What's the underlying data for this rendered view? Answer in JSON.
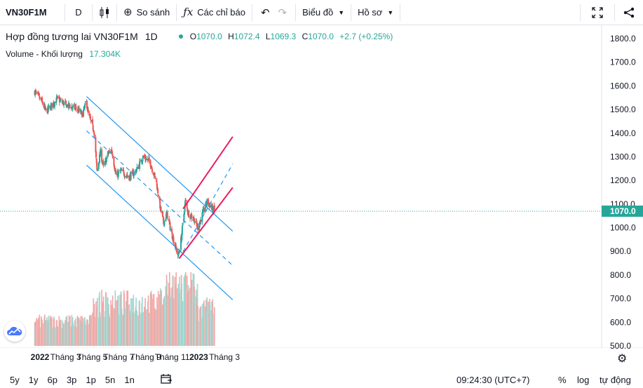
{
  "toolbar": {
    "symbol": "VN30F1M",
    "interval": "D",
    "compare_label": "So sánh",
    "indicators_label": "Các chỉ báo",
    "chart_label": "Biểu đồ",
    "profile_label": "Hồ sơ",
    "icons": [
      "candles-icon",
      "plus-circle-icon",
      "fx-icon",
      "undo-icon",
      "redo-icon",
      "fullscreen-icon",
      "share-icon"
    ]
  },
  "legend": {
    "title": "Hợp đồng tương lai VN30F1M",
    "interval": "1D",
    "o_label": "O",
    "o": "1070.0",
    "h_label": "H",
    "h": "1072.4",
    "l_label": "L",
    "l": "1069.3",
    "c_label": "C",
    "c": "1070.0",
    "change": "+2.7 (+0.25%)",
    "volume_label": "Volume - Khối lượng",
    "volume_value": "17.304K"
  },
  "bottom": {
    "ranges": [
      "5y",
      "1y",
      "6p",
      "3p",
      "1p",
      "5n",
      "1n"
    ],
    "time": "09:24:30 (UTC+7)",
    "percent": "%",
    "log": "log",
    "auto": "tự động"
  },
  "colors": {
    "up": "#26a69a",
    "down": "#ef5350",
    "channel": "#2196f3",
    "pitch": "#e91e63",
    "axis_text": "#131722",
    "grid": "#ffffff",
    "last_price_bg": "#26a69a"
  },
  "chart_data": {
    "type": "candlestick",
    "title": "Hợp đồng tương lai VN30F1M",
    "x_ticks": [
      "2022",
      "Tháng 3",
      "Tháng 5",
      "Tháng 7",
      "Tháng 9",
      "Tháng 11",
      "2023",
      "Tháng 3"
    ],
    "y_ticks": [
      "500.0",
      "600.0",
      "700.0",
      "800.0",
      "900.0",
      "1000.0",
      "1100.0",
      "1200.0",
      "1300.0",
      "1400.0",
      "1500.0",
      "1600.0",
      "1700.0",
      "1800.0"
    ],
    "y_range": [
      490,
      1830
    ],
    "last_price": 1070.0,
    "last_price_label": "1070.0",
    "close_path": [
      {
        "d": "2021-12-20",
        "c": 1575
      },
      {
        "d": "2022-01-05",
        "c": 1535
      },
      {
        "d": "2022-01-15",
        "c": 1490
      },
      {
        "d": "2022-02-10",
        "c": 1545
      },
      {
        "d": "2022-03-01",
        "c": 1520
      },
      {
        "d": "2022-03-25",
        "c": 1505
      },
      {
        "d": "2022-04-08",
        "c": 1480
      },
      {
        "d": "2022-04-18",
        "c": 1530
      },
      {
        "d": "2022-04-22",
        "c": 1480
      },
      {
        "d": "2022-05-05",
        "c": 1410
      },
      {
        "d": "2022-05-12",
        "c": 1240
      },
      {
        "d": "2022-05-20",
        "c": 1320
      },
      {
        "d": "2022-05-28",
        "c": 1250
      },
      {
        "d": "2022-06-05",
        "c": 1310
      },
      {
        "d": "2022-06-15",
        "c": 1330
      },
      {
        "d": "2022-06-25",
        "c": 1215
      },
      {
        "d": "2022-07-05",
        "c": 1240
      },
      {
        "d": "2022-07-25",
        "c": 1215
      },
      {
        "d": "2022-08-10",
        "c": 1240
      },
      {
        "d": "2022-08-26",
        "c": 1300
      },
      {
        "d": "2022-09-10",
        "c": 1280
      },
      {
        "d": "2022-09-25",
        "c": 1200
      },
      {
        "d": "2022-10-05",
        "c": 1080
      },
      {
        "d": "2022-10-12",
        "c": 1020
      },
      {
        "d": "2022-10-20",
        "c": 1060
      },
      {
        "d": "2022-10-30",
        "c": 980
      },
      {
        "d": "2022-11-08",
        "c": 920
      },
      {
        "d": "2022-11-15",
        "c": 880
      },
      {
        "d": "2022-11-22",
        "c": 960
      },
      {
        "d": "2022-12-01",
        "c": 1110
      },
      {
        "d": "2022-12-08",
        "c": 1060
      },
      {
        "d": "2022-12-20",
        "c": 1040
      },
      {
        "d": "2022-12-30",
        "c": 1000
      },
      {
        "d": "2023-01-10",
        "c": 1060
      },
      {
        "d": "2023-01-20",
        "c": 1110
      },
      {
        "d": "2023-02-06",
        "c": 1070
      }
    ],
    "volume_series": "Volume - Khối lượng",
    "volume_axis_note": "volume histogram in lower pane (no separate scale)",
    "drawings": [
      {
        "type": "parallel_channel",
        "color": "channel",
        "upper": [
          [
            "2022-04-18",
            1555
          ],
          [
            "2023-03-20",
            985
          ]
        ],
        "mid": [
          [
            "2022-04-18",
            1410
          ],
          [
            "2023-03-20",
            840
          ]
        ],
        "lower": [
          [
            "2022-04-18",
            1265
          ],
          [
            "2023-03-20",
            695
          ]
        ]
      },
      {
        "type": "pitchfork",
        "color": "pitch",
        "upper": [
          [
            "2022-11-26",
            1080
          ],
          [
            "2023-03-20",
            1385
          ]
        ],
        "mid": [
          [
            "2022-11-17",
            870
          ],
          [
            "2023-03-20",
            1270
          ]
        ],
        "lower": [
          [
            "2022-11-17",
            870
          ],
          [
            "2023-03-20",
            1170
          ]
        ]
      }
    ]
  }
}
